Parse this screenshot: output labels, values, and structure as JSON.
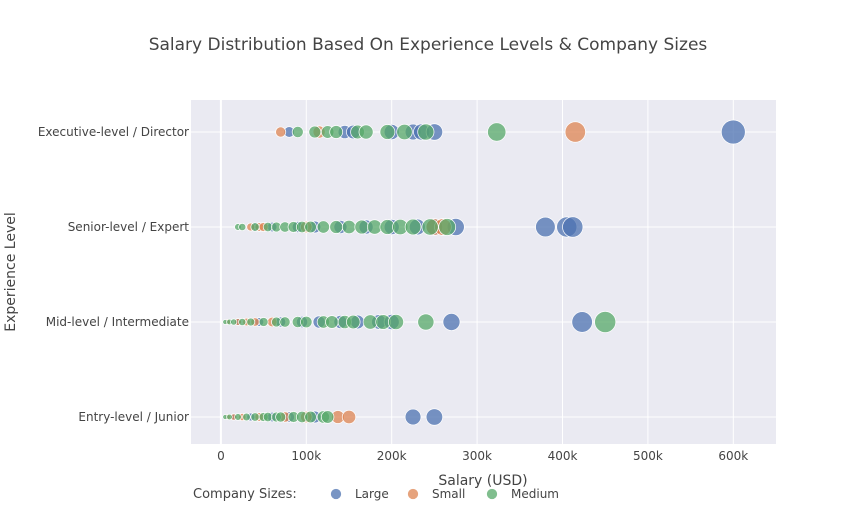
{
  "chart_data": {
    "type": "scatter",
    "title": "Salary Distribution Based On Experience Levels & Company Sizes",
    "xlabel": "Salary (USD)",
    "ylabel": "Experience Level",
    "xlim": [
      -35000,
      650000
    ],
    "x_ticks": [
      {
        "value": 0,
        "label": "0"
      },
      {
        "value": 100000,
        "label": "100k"
      },
      {
        "value": 200000,
        "label": "200k"
      },
      {
        "value": 300000,
        "label": "300k"
      },
      {
        "value": 400000,
        "label": "400k"
      },
      {
        "value": 500000,
        "label": "500k"
      },
      {
        "value": 600000,
        "label": "600k"
      }
    ],
    "categories": [
      "Entry-level / Junior",
      "Mid-level / Intermediate",
      "Senior-level / Expert",
      "Executive-level / Director"
    ],
    "grid": true,
    "legend": {
      "title": "Company Sizes:",
      "position": "bottom"
    },
    "series": [
      {
        "name": "Large",
        "color": "#4c72b0",
        "points": [
          {
            "cat": "Executive-level / Director",
            "x": [
              80000,
              145000,
              155000,
              200000,
              225000,
              235000,
              250000,
              600000
            ]
          },
          {
            "cat": "Senior-level / Expert",
            "x": [
              40000,
              60000,
              90000,
              110000,
              140000,
              170000,
              200000,
              230000,
              250000,
              275000,
              380000,
              405000,
              412000
            ]
          },
          {
            "cat": "Mid-level / Intermediate",
            "x": [
              20000,
              45000,
              70000,
              95000,
              115000,
              140000,
              160000,
              185000,
              200000,
              270000,
              423000
            ]
          },
          {
            "cat": "Entry-level / Junior",
            "x": [
              15000,
              35000,
              60000,
              80000,
              110000,
              225000,
              250000
            ]
          }
        ]
      },
      {
        "name": "Small",
        "color": "#dd8452",
        "points": [
          {
            "cat": "Executive-level / Director",
            "x": [
              70000,
              115000,
              415000
            ]
          },
          {
            "cat": "Senior-level / Expert",
            "x": [
              35000,
              45000,
              50000,
              100000,
              250000,
              260000
            ]
          },
          {
            "cat": "Mid-level / Intermediate",
            "x": [
              8000,
              20000,
              30000,
              40000,
              60000
            ]
          },
          {
            "cat": "Entry-level / Junior",
            "x": [
              8000,
              15000,
              25000,
              45000,
              75000,
              100000,
              137000,
              150000
            ]
          }
        ]
      },
      {
        "name": "Medium",
        "color": "#55a868",
        "points": [
          {
            "cat": "Executive-level / Director",
            "x": [
              90000,
              110000,
              125000,
              135000,
              160000,
              170000,
              195000,
              215000,
              240000,
              323000
            ]
          },
          {
            "cat": "Senior-level / Expert",
            "x": [
              20000,
              25000,
              40000,
              55000,
              65000,
              75000,
              85000,
              95000,
              105000,
              120000,
              135000,
              150000,
              165000,
              180000,
              195000,
              210000,
              225000,
              245000,
              265000
            ]
          },
          {
            "cat": "Mid-level / Intermediate",
            "x": [
              5000,
              10000,
              15000,
              25000,
              35000,
              50000,
              65000,
              75000,
              90000,
              100000,
              120000,
              130000,
              145000,
              155000,
              175000,
              190000,
              205000,
              240000,
              450000
            ]
          },
          {
            "cat": "Entry-level / Junior",
            "x": [
              5000,
              10000,
              20000,
              30000,
              40000,
              50000,
              55000,
              65000,
              70000,
              85000,
              95000,
              105000,
              120000,
              125000
            ]
          }
        ]
      }
    ]
  }
}
